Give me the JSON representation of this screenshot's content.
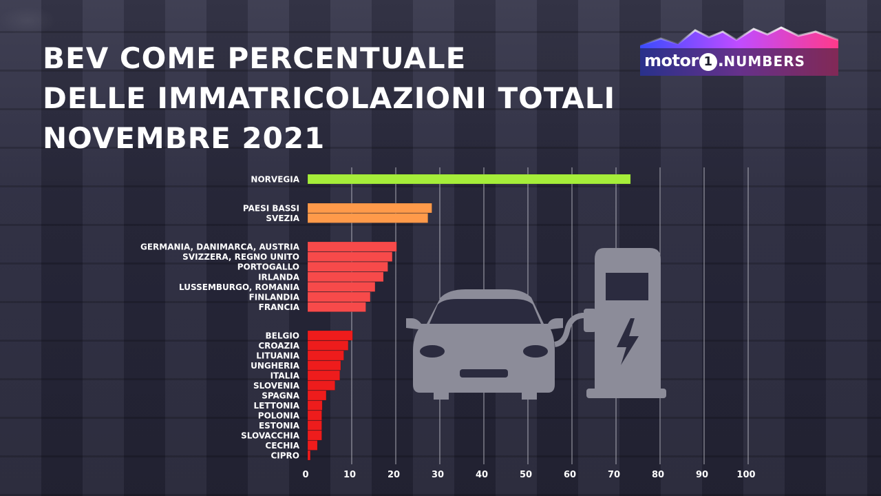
{
  "title_lines": [
    "BEV COME PERCENTUALE",
    "DELLE IMMATRICOLAZIONI TOTALI",
    "NOVEMBRE 2021"
  ],
  "logo": {
    "motor": "motor",
    "one": "1",
    "dot": ".",
    "numbers": "NUMBERS"
  },
  "decor_icons": [
    "electric-car-icon",
    "charging-station-icon"
  ],
  "colors": {
    "green": "#a6ee3a",
    "orange": "#ff9a4a",
    "light_red": "#f74a4a",
    "red": "#ee1c1c",
    "icon_gray": "#8c8c99"
  },
  "chart_data": {
    "type": "bar",
    "orientation": "horizontal",
    "title": "BEV COME PERCENTUALE DELLE IMMATRICOLAZIONI TOTALI NOVEMBRE 2021",
    "xlabel": "",
    "ylabel": "",
    "xlim": [
      0,
      100
    ],
    "ticks": [
      0,
      10,
      20,
      30,
      40,
      50,
      60,
      70,
      80,
      90,
      100
    ],
    "grid": true,
    "groups": [
      {
        "color": "#a6ee3a",
        "bars": [
          {
            "label": "NORVEGIA",
            "value": 73.3
          }
        ]
      },
      {
        "color": "#ff9a4a",
        "bars": [
          {
            "label": "PAESI BASSI",
            "value": 28.2
          },
          {
            "label": "SVEZIA",
            "value": 27.3
          }
        ]
      },
      {
        "color": "#f74a4a",
        "bars": [
          {
            "label": "GERMANIA, DANIMARCA, AUSTRIA",
            "value": 20.2
          },
          {
            "label": "SVIZZERA, REGNO UNITO",
            "value": 19.2
          },
          {
            "label": "PORTOGALLO",
            "value": 18.2
          },
          {
            "label": "IRLANDA",
            "value": 17.2
          },
          {
            "label": "LUSSEMBURGO, ROMANIA",
            "value": 15.3
          },
          {
            "label": "FINLANDIA",
            "value": 14.2
          },
          {
            "label": "FRANCIA",
            "value": 13.2
          }
        ]
      },
      {
        "color": "#ee1c1c",
        "bars": [
          {
            "label": "BELGIO",
            "value": 10.2
          },
          {
            "label": "CROAZIA",
            "value": 9.2
          },
          {
            "label": "LITUANIA",
            "value": 8.2
          },
          {
            "label": "UNGHERIA",
            "value": 7.5
          },
          {
            "label": "ITALIA",
            "value": 7.3
          },
          {
            "label": "SLOVENIA",
            "value": 6.2
          },
          {
            "label": "SPAGNA",
            "value": 4.2
          },
          {
            "label": "LETTONIA",
            "value": 3.3
          },
          {
            "label": "POLONIA",
            "value": 3.2
          },
          {
            "label": "ESTONIA",
            "value": 3.2
          },
          {
            "label": "SLOVACCHIA",
            "value": 3.2
          },
          {
            "label": "CECHIA",
            "value": 2.2
          },
          {
            "label": "CIPRO",
            "value": 0.6
          }
        ]
      }
    ]
  }
}
